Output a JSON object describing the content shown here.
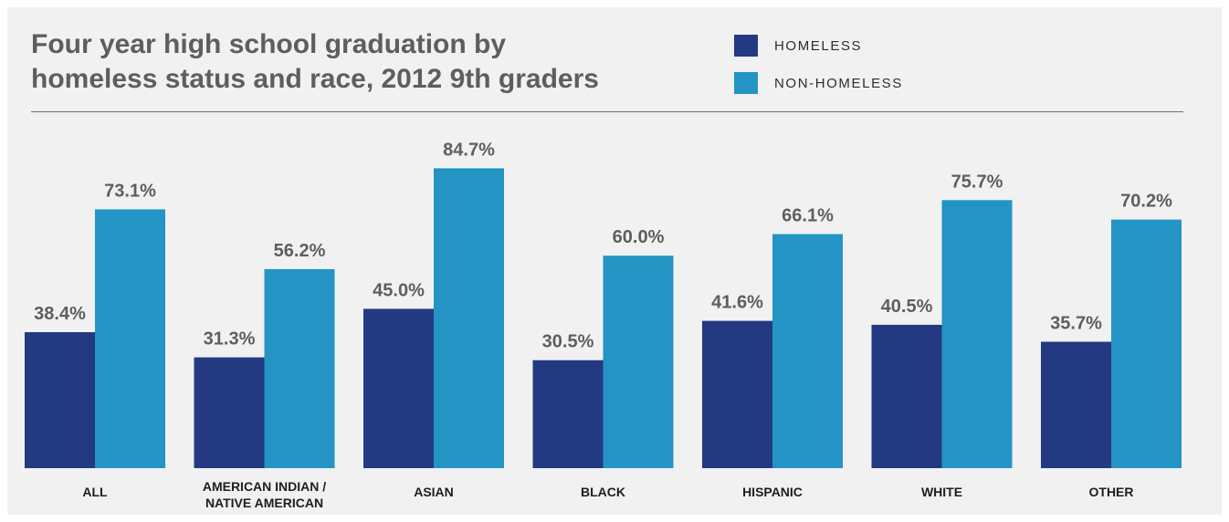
{
  "chart_data": {
    "type": "bar",
    "title_lines": [
      "Four year high school graduation by",
      "homeless status and race, 2012 9th graders"
    ],
    "categories": [
      "ALL",
      "AMERICAN INDIAN / NATIVE AMERICAN",
      "ASIAN",
      "BLACK",
      "HISPANIC",
      "WHITE",
      "OTHER"
    ],
    "category_lines": [
      [
        "ALL"
      ],
      [
        "AMERICAN INDIAN /",
        "NATIVE AMERICAN"
      ],
      [
        "ASIAN"
      ],
      [
        "BLACK"
      ],
      [
        "HISPANIC"
      ],
      [
        "WHITE"
      ],
      [
        "OTHER"
      ]
    ],
    "series": [
      {
        "name": "HOMELESS",
        "color": "#233a82",
        "values": [
          38.4,
          31.3,
          45.0,
          30.5,
          41.6,
          40.5,
          35.7
        ],
        "labels": [
          "38.4%",
          "31.3%",
          "45.0%",
          "30.5%",
          "41.6%",
          "40.5%",
          "35.7%"
        ]
      },
      {
        "name": "NON-HOMELESS",
        "color": "#2394c4",
        "values": [
          73.1,
          56.2,
          84.7,
          60.0,
          66.1,
          75.7,
          70.2
        ],
        "labels": [
          "73.1%",
          "56.2%",
          "84.7%",
          "60.0%",
          "66.1%",
          "75.7%",
          "70.2%"
        ]
      }
    ],
    "legend_position": "top-right",
    "ylim": [
      0,
      100
    ],
    "grid": false
  }
}
